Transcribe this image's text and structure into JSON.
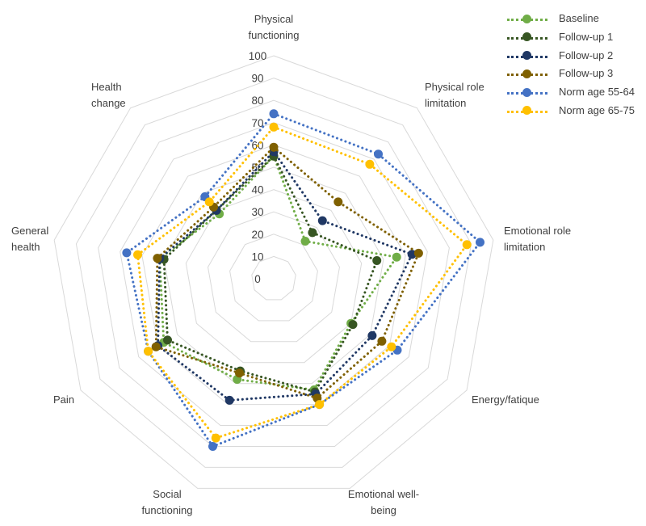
{
  "chart_data": {
    "type": "radar",
    "title": "",
    "r_range": [
      0,
      100
    ],
    "ticks": [
      "0",
      "10",
      "20",
      "30",
      "40",
      "50",
      "60",
      "70",
      "80",
      "90",
      "100"
    ],
    "axes": [
      [
        "Physical",
        "functioning"
      ],
      [
        "Physical role",
        "limitation"
      ],
      [
        "Emotional role",
        "limitation"
      ],
      [
        "Energy/fatique"
      ],
      [
        "Emotional well-",
        "being"
      ],
      [
        "Social",
        "functioning"
      ],
      [
        "Pain"
      ],
      [
        "General",
        "health"
      ],
      [
        "Health",
        "change"
      ]
    ],
    "series": [
      {
        "name": "Baseline",
        "color": "#70AD47",
        "values": [
          55,
          22,
          56,
          40,
          53,
          48,
          57,
          52,
          38
        ]
      },
      {
        "name": "Follow-up 1",
        "color": "#375623",
        "values": [
          55,
          27,
          47,
          41,
          54,
          44,
          55,
          50,
          40
        ]
      },
      {
        "name": "Follow-up 2",
        "color": "#203864",
        "values": [
          57,
          34,
          63,
          51,
          55,
          58,
          60,
          52,
          40
        ]
      },
      {
        "name": "Follow-up 3",
        "color": "#7F6000",
        "values": [
          59,
          45,
          66,
          56,
          57,
          45,
          61,
          53,
          42
        ]
      },
      {
        "name": "Norm age 55-64",
        "color": "#4472C4",
        "values": [
          74,
          73,
          94,
          64,
          60,
          80,
          65,
          67,
          48
        ]
      },
      {
        "name": "Norm age 65-75",
        "color": "#FFC000",
        "values": [
          68,
          67,
          88,
          61,
          60,
          76,
          65,
          62,
          45
        ]
      }
    ]
  }
}
